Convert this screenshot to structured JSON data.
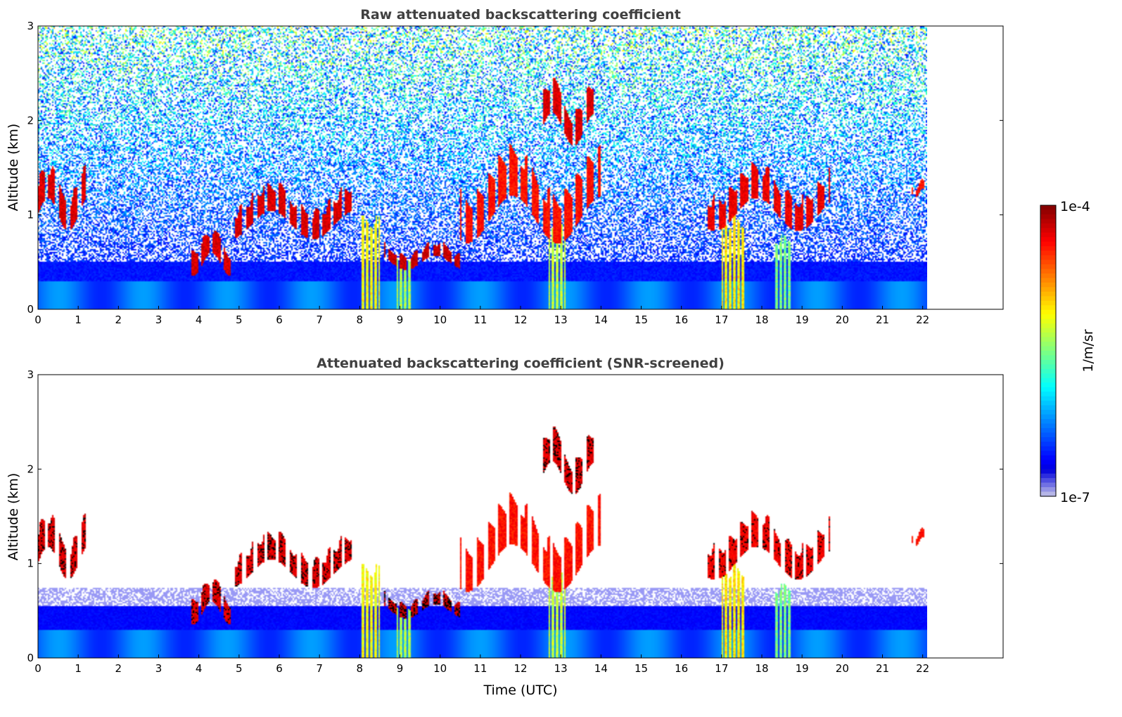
{
  "chart_data": [
    {
      "type": "heatmap",
      "title": "Raw attenuated backscattering coefficient",
      "xlabel": "",
      "ylabel": "Altitude (km)",
      "xlim": [
        0,
        24
      ],
      "ylim": [
        0,
        3
      ],
      "data_extent_x": [
        0,
        22.1
      ],
      "xticks": [
        "0",
        "1",
        "2",
        "3",
        "4",
        "5",
        "6",
        "7",
        "8",
        "9",
        "10",
        "11",
        "12",
        "13",
        "14",
        "15",
        "16",
        "17",
        "18",
        "19",
        "20",
        "21",
        "22"
      ],
      "yticks": [
        "0",
        "1",
        "2",
        "3"
      ],
      "screened": false,
      "features": [
        {
          "kind": "aerosol_layer",
          "t": [
            0,
            22.1
          ],
          "top_km": 0.3,
          "level": 0.22
        },
        {
          "kind": "noise_field",
          "t": [
            0,
            22.1
          ],
          "alt_km": [
            0.5,
            3
          ],
          "level": "high above 1.5 km"
        },
        {
          "kind": "cloud",
          "t": [
            0,
            1.2
          ],
          "alt_km": [
            0.9,
            1.6
          ],
          "level": 0.95
        },
        {
          "kind": "cloud",
          "t": [
            3.7,
            4.8
          ],
          "alt_km": [
            0.4,
            0.9
          ],
          "level": 0.95
        },
        {
          "kind": "cloud",
          "t": [
            4.8,
            7.9
          ],
          "alt_km": [
            0.8,
            1.4
          ],
          "level": 0.95
        },
        {
          "kind": "cloud",
          "t": [
            8.6,
            10.5
          ],
          "alt_km": [
            0.45,
            0.75
          ],
          "level": 0.97
        },
        {
          "kind": "cloud",
          "t": [
            10.5,
            14.0
          ],
          "alt_km": [
            0.8,
            1.8
          ],
          "level": 0.9
        },
        {
          "kind": "cloud",
          "t": [
            12.5,
            13.8
          ],
          "alt_km": [
            1.8,
            2.5
          ],
          "level": 0.95
        },
        {
          "kind": "cloud",
          "t": [
            16.6,
            19.7
          ],
          "alt_km": [
            0.9,
            1.6
          ],
          "level": 0.93
        },
        {
          "kind": "cloud",
          "t": [
            21.7,
            22.1
          ],
          "alt_km": [
            1.2,
            1.4
          ],
          "level": 0.9
        },
        {
          "kind": "precip",
          "t": [
            8.0,
            8.5
          ],
          "alt_km": [
            0,
            1.0
          ],
          "level": 0.68
        },
        {
          "kind": "precip",
          "t": [
            8.9,
            9.3
          ],
          "alt_km": [
            0,
            0.6
          ],
          "level": 0.6
        },
        {
          "kind": "precip",
          "t": [
            12.7,
            13.1
          ],
          "alt_km": [
            0,
            1.0
          ],
          "level": 0.62
        },
        {
          "kind": "precip",
          "t": [
            17.0,
            17.6
          ],
          "alt_km": [
            0,
            1.0
          ],
          "level": 0.7
        },
        {
          "kind": "precip",
          "t": [
            18.3,
            18.7
          ],
          "alt_km": [
            0,
            0.8
          ],
          "level": 0.55
        }
      ]
    },
    {
      "type": "heatmap",
      "title": "Attenuated backscattering coefficient (SNR-screened)",
      "xlabel": "Time (UTC)",
      "ylabel": "Altitude (km)",
      "xlim": [
        0,
        24
      ],
      "ylim": [
        0,
        3
      ],
      "data_extent_x": [
        0,
        22.1
      ],
      "xticks": [
        "0",
        "1",
        "2",
        "3",
        "4",
        "5",
        "6",
        "7",
        "8",
        "9",
        "10",
        "11",
        "12",
        "13",
        "14",
        "15",
        "16",
        "17",
        "18",
        "19",
        "20",
        "21",
        "22"
      ],
      "yticks": [
        "0",
        "1",
        "2",
        "3"
      ],
      "screened": true
    }
  ],
  "colorbar": {
    "label": "1/m/sr",
    "min_label": "1e-7",
    "max_label": "1e-4",
    "colormap": "jet",
    "scale": "log"
  },
  "colors": {
    "title": "#404040",
    "axis": "#000000",
    "background": "#ffffff"
  }
}
